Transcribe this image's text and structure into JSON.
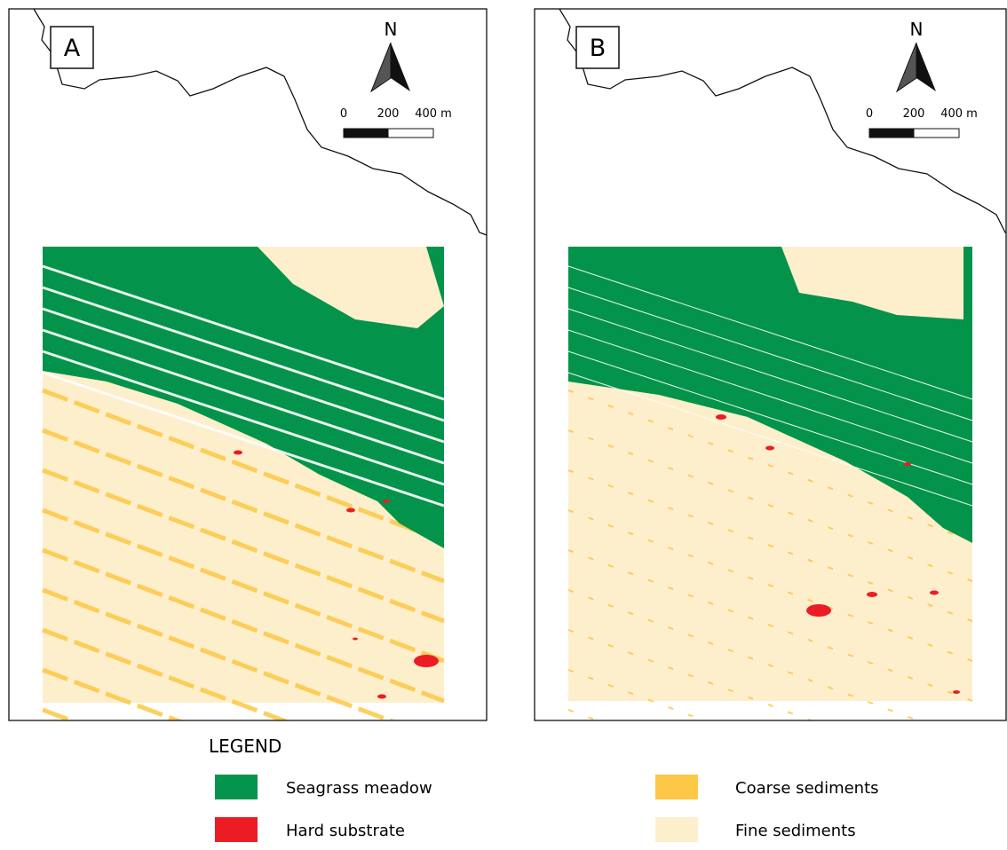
{
  "panels": [
    {
      "label": "A",
      "north": "N",
      "scale": [
        "0",
        "200",
        "400 m"
      ]
    },
    {
      "label": "B",
      "north": "N",
      "scale": [
        "0",
        "200",
        "400 m"
      ]
    }
  ],
  "legend": {
    "title": "LEGEND",
    "items": [
      {
        "label": "Seagrass meadow",
        "color": "#04934a"
      },
      {
        "label": "Hard substrate",
        "color": "#ec1c24"
      },
      {
        "label": "Coarse sediments",
        "color": "#fcc845"
      },
      {
        "label": "Fine sediments",
        "color": "#fdefcc"
      }
    ]
  }
}
